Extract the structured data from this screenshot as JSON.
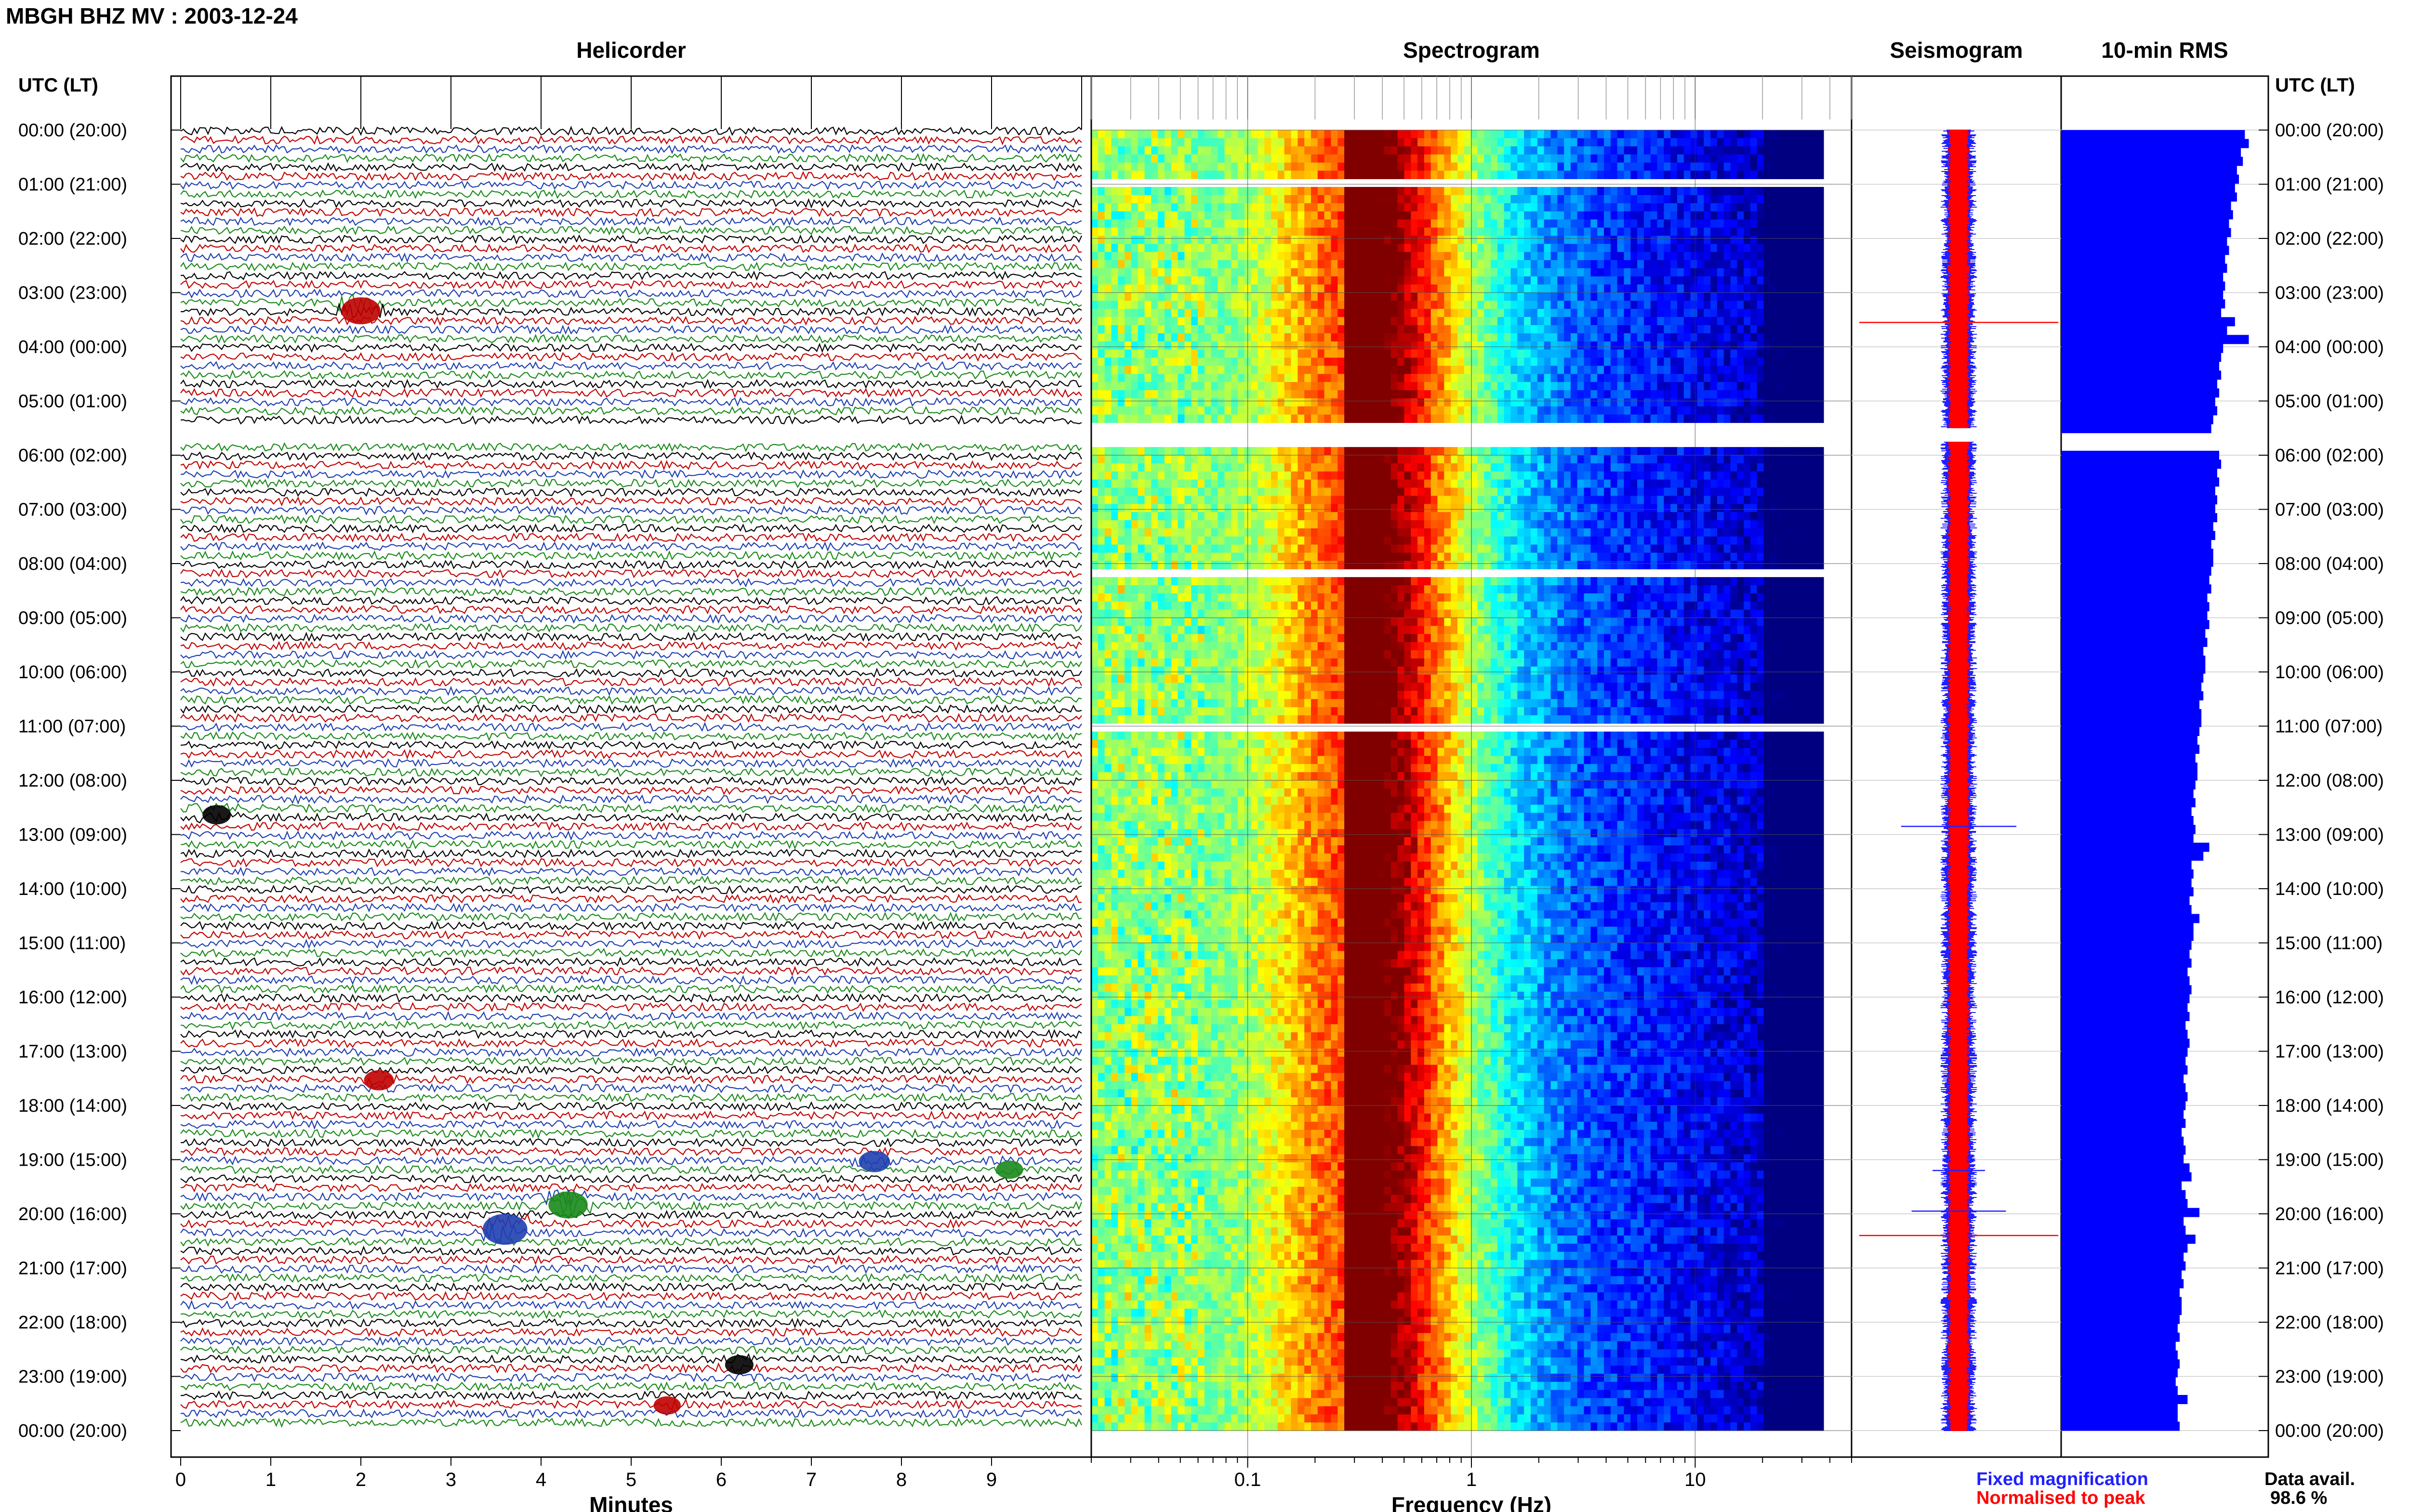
{
  "header": {
    "title": "MBGH BHZ MV : 2003-12-24"
  },
  "panels": {
    "helicorder": "Helicorder",
    "spectrogram": "Spectrogram",
    "seismogram": "Seismogram",
    "rms": "10-min RMS"
  },
  "axes": {
    "time_label_left": "UTC (LT)",
    "time_label_right": "UTC (LT)",
    "helicorder_xlabel": "Minutes",
    "spectrogram_xlabel": "Frequency (Hz)"
  },
  "legend": {
    "fixed": "Fixed magnification",
    "normalised": "Normalised to peak",
    "data_avail_label": "Data avail.",
    "data_avail_value": "98.6 %"
  },
  "colors": {
    "trace_cycle": [
      "#000000",
      "#c00000",
      "#1f3fb0",
      "#1a8a1a"
    ],
    "fixed": "#2020ff",
    "normalised": "#ff0000",
    "rms_bar": "#0000ff"
  },
  "chart_data": {
    "type": "heatmap",
    "time_ticks": [
      "00:00 (20:00)",
      "01:00 (21:00)",
      "02:00 (22:00)",
      "03:00 (23:00)",
      "04:00 (00:00)",
      "05:00 (01:00)",
      "06:00 (02:00)",
      "07:00 (03:00)",
      "08:00 (04:00)",
      "09:00 (05:00)",
      "10:00 (06:00)",
      "11:00 (07:00)",
      "12:00 (08:00)",
      "13:00 (09:00)",
      "14:00 (10:00)",
      "15:00 (11:00)",
      "16:00 (12:00)",
      "17:00 (13:00)",
      "18:00 (14:00)",
      "19:00 (15:00)",
      "20:00 (16:00)",
      "21:00 (17:00)",
      "22:00 (18:00)",
      "23:00 (19:00)",
      "00:00 (20:00)"
    ],
    "helicorder": {
      "x_ticks": [
        "0",
        "1",
        "2",
        "3",
        "4",
        "5",
        "6",
        "7",
        "8",
        "9"
      ],
      "xlim": [
        0,
        10
      ],
      "traces_per_hour": 6,
      "data_gap_hours": [
        5.5,
        5.75
      ],
      "events": [
        {
          "hour": 3.3,
          "minute": 2.0,
          "color": "#c00000",
          "amp": 2.2
        },
        {
          "hour": 12.6,
          "minute": 0.4,
          "color": "#000000",
          "amp": 1.4
        },
        {
          "hour": 17.5,
          "minute": 2.2,
          "color": "#c00000",
          "amp": 1.5
        },
        {
          "hour": 19.0,
          "minute": 7.7,
          "color": "#1f3fb0",
          "amp": 1.6
        },
        {
          "hour": 19.15,
          "minute": 9.2,
          "color": "#1a8a1a",
          "amp": 1.3
        },
        {
          "hour": 19.8,
          "minute": 4.3,
          "color": "#1a8a1a",
          "amp": 2.2
        },
        {
          "hour": 20.25,
          "minute": 3.6,
          "color": "#1f3fb0",
          "amp": 2.6
        },
        {
          "hour": 22.75,
          "minute": 6.2,
          "color": "#000000",
          "amp": 1.4
        },
        {
          "hour": 23.5,
          "minute": 5.4,
          "color": "#c00000",
          "amp": 1.3
        }
      ]
    },
    "spectrogram": {
      "x_scale": "log",
      "xlim": [
        0.02,
        50
      ],
      "x_ticks": [
        "0.1",
        "1",
        "10"
      ],
      "x_tick_values": [
        0.1,
        1,
        10
      ],
      "peak_frequency": 0.28,
      "data_gaps": [
        [
          5.5,
          5.75
        ],
        [
          1.0,
          1.03
        ],
        [
          8.15,
          8.2
        ],
        [
          10.95,
          11.0
        ]
      ]
    },
    "seismogram": {
      "series": [
        {
          "name": "Fixed magnification",
          "color": "#2020ff"
        },
        {
          "name": "Normalised to peak",
          "color": "#ff0000"
        }
      ],
      "spikes": [
        {
          "hour": 3.55,
          "amp": 0.95,
          "color": "#ff0000"
        },
        {
          "hour": 12.85,
          "amp": 0.55,
          "color": "#2020ff"
        },
        {
          "hour": 19.2,
          "amp": 0.25,
          "color": "#2020ff"
        },
        {
          "hour": 19.95,
          "amp": 0.45,
          "color": "#2020ff"
        },
        {
          "hour": 20.4,
          "amp": 0.95,
          "color": "#ff0000"
        }
      ]
    },
    "rms": {
      "interval_min": 10,
      "values": [
        0.93,
        0.95,
        0.91,
        0.92,
        0.89,
        0.9,
        0.88,
        0.89,
        0.86,
        0.87,
        0.85,
        0.86,
        0.84,
        0.85,
        0.83,
        0.84,
        0.82,
        0.83,
        0.82,
        0.83,
        0.81,
        0.88,
        0.84,
        0.95,
        0.82,
        0.81,
        0.8,
        0.81,
        0.79,
        0.8,
        0.78,
        0.79,
        0.77,
        0.76,
        0.0,
        0.0,
        0.8,
        0.81,
        0.79,
        0.8,
        0.78,
        0.79,
        0.78,
        0.79,
        0.77,
        0.78,
        0.76,
        0.77,
        0.77,
        0.76,
        0.75,
        0.76,
        0.74,
        0.75,
        0.74,
        0.75,
        0.73,
        0.74,
        0.72,
        0.73,
        0.73,
        0.72,
        0.71,
        0.72,
        0.7,
        0.71,
        0.71,
        0.7,
        0.69,
        0.7,
        0.68,
        0.69,
        0.69,
        0.68,
        0.67,
        0.68,
        0.66,
        0.67,
        0.68,
        0.67,
        0.75,
        0.72,
        0.66,
        0.67,
        0.66,
        0.67,
        0.65,
        0.66,
        0.7,
        0.67,
        0.67,
        0.66,
        0.65,
        0.66,
        0.64,
        0.65,
        0.66,
        0.65,
        0.64,
        0.65,
        0.63,
        0.64,
        0.65,
        0.64,
        0.63,
        0.64,
        0.62,
        0.63,
        0.64,
        0.63,
        0.62,
        0.63,
        0.61,
        0.62,
        0.63,
        0.62,
        0.65,
        0.66,
        0.61,
        0.63,
        0.64,
        0.7,
        0.62,
        0.63,
        0.68,
        0.64,
        0.62,
        0.63,
        0.61,
        0.62,
        0.6,
        0.61,
        0.61,
        0.6,
        0.59,
        0.6,
        0.58,
        0.59,
        0.6,
        0.59,
        0.58,
        0.59,
        0.64,
        0.59,
        0.59,
        0.6
      ],
      "xlim": [
        0,
        1
      ]
    }
  }
}
